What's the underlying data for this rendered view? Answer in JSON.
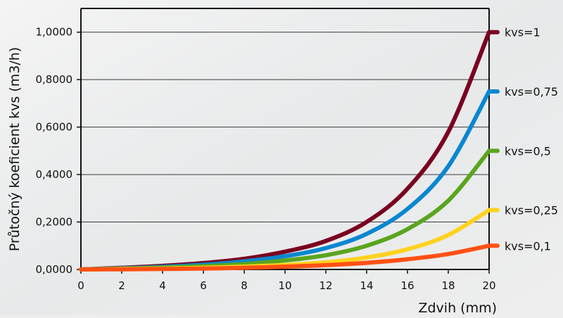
{
  "chart_data": {
    "type": "line",
    "title": "",
    "xlabel": "Zdvih (mm)",
    "ylabel": "Průtočný koeficient kvs (m3/h)",
    "xlim": [
      0,
      20
    ],
    "ylim": [
      0,
      1.1
    ],
    "x_ticks": [
      0,
      2,
      4,
      6,
      8,
      10,
      12,
      14,
      16,
      18,
      20
    ],
    "x_tick_labels": [
      "0",
      "2",
      "4",
      "6",
      "8",
      "10",
      "12",
      "14",
      "16",
      "18",
      "20"
    ],
    "y_ticks": [
      0,
      0.2,
      0.4,
      0.6,
      0.8,
      1.0
    ],
    "y_tick_labels": [
      "0,0000",
      "0,2000",
      "0,4000",
      "0,6000",
      "0,8000",
      "1,0000"
    ],
    "grid": "horizontal",
    "legend_placement": "right, at line ends",
    "x": [
      0,
      2,
      4,
      6,
      8,
      10,
      12,
      14,
      16,
      18,
      20
    ],
    "series": [
      {
        "name": "kvs=1",
        "color": "#7a0020",
        "values": [
          0,
          0.007,
          0.015,
          0.027,
          0.045,
          0.075,
          0.12,
          0.2,
          0.34,
          0.58,
          1.0
        ]
      },
      {
        "name": "kvs=0,75",
        "color": "#0a87d0",
        "values": [
          0,
          0.005,
          0.011,
          0.02,
          0.034,
          0.056,
          0.09,
          0.15,
          0.255,
          0.435,
          0.75
        ]
      },
      {
        "name": "kvs=0,5",
        "color": "#5aa51e",
        "values": [
          0,
          0.004,
          0.008,
          0.014,
          0.023,
          0.038,
          0.06,
          0.1,
          0.17,
          0.29,
          0.5
        ]
      },
      {
        "name": "kvs=0,25",
        "color": "#ffd21e",
        "values": [
          0,
          0.002,
          0.004,
          0.007,
          0.012,
          0.019,
          0.03,
          0.05,
          0.085,
          0.145,
          0.25
        ]
      },
      {
        "name": "kvs=0,1",
        "color": "#ff5014",
        "values": [
          0,
          0.001,
          0.002,
          0.004,
          0.007,
          0.012,
          0.018,
          0.028,
          0.043,
          0.065,
          0.1
        ]
      }
    ]
  }
}
